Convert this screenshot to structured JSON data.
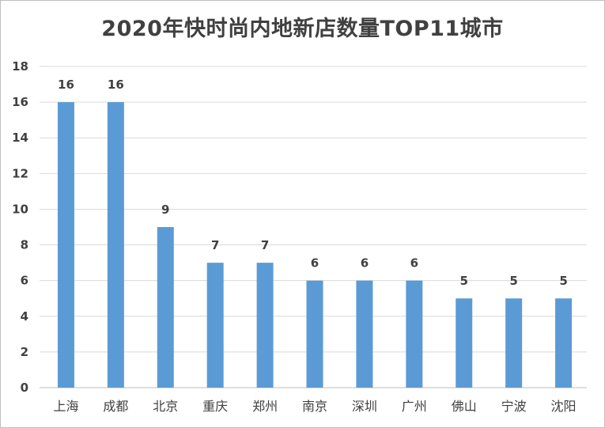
{
  "chart_data": {
    "type": "bar",
    "title": "2020年快时尚内地新店数量TOP11城市",
    "xlabel": "",
    "ylabel": "",
    "categories": [
      "上海",
      "成都",
      "北京",
      "重庆",
      "郑州",
      "南京",
      "深圳",
      "广州",
      "佛山",
      "宁波",
      "沈阳"
    ],
    "values": [
      16,
      16,
      9,
      7,
      7,
      6,
      6,
      6,
      5,
      5,
      5
    ],
    "ylim": [
      0,
      18
    ],
    "yticks": [
      0,
      2,
      4,
      6,
      8,
      10,
      12,
      14,
      16,
      18
    ],
    "grid": true,
    "legend": "none",
    "bar_color": "#5b9bd5",
    "gridline_color": "#d9d9d9",
    "text_color": "#404040"
  }
}
